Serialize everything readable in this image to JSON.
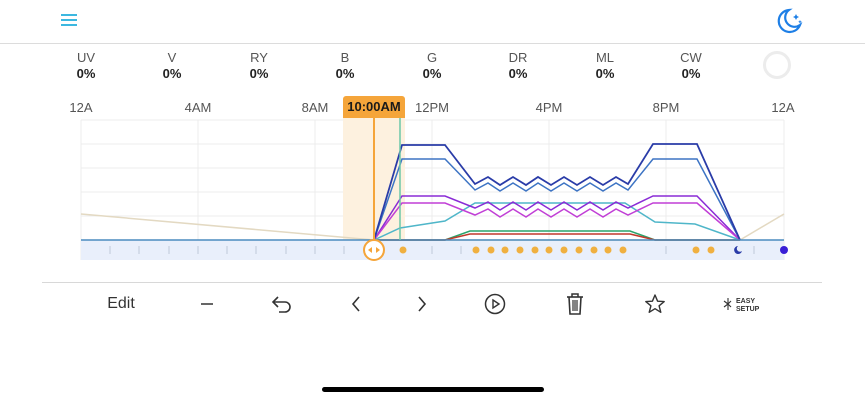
{
  "channels": [
    {
      "name": "UV",
      "value": "0%"
    },
    {
      "name": "V",
      "value": "0%"
    },
    {
      "name": "RY",
      "value": "0%"
    },
    {
      "name": "B",
      "value": "0%"
    },
    {
      "name": "G",
      "value": "0%"
    },
    {
      "name": "DR",
      "value": "0%"
    },
    {
      "name": "ML",
      "value": "0%"
    },
    {
      "name": "CW",
      "value": "0%"
    }
  ],
  "time_axis": [
    "12A",
    "4AM",
    "8AM",
    "12PM",
    "4PM",
    "8PM",
    "12A"
  ],
  "current_time": "10:00AM",
  "toolbar": {
    "edit_label": "Edit",
    "easy_setup_label_1": "EASY",
    "easy_setup_label_2": "SETUP"
  },
  "colors": {
    "accent": "#f5a53a",
    "menu": "#3db8e0",
    "moon": "#1e7fe6",
    "chart_band": "#e9effb"
  },
  "icons": [
    "menu-icon",
    "moon-icon",
    "minus-icon",
    "undo-icon",
    "chevron-left-icon",
    "chevron-right-icon",
    "play-icon",
    "trash-icon",
    "star-icon",
    "easy-setup-icon"
  ]
}
